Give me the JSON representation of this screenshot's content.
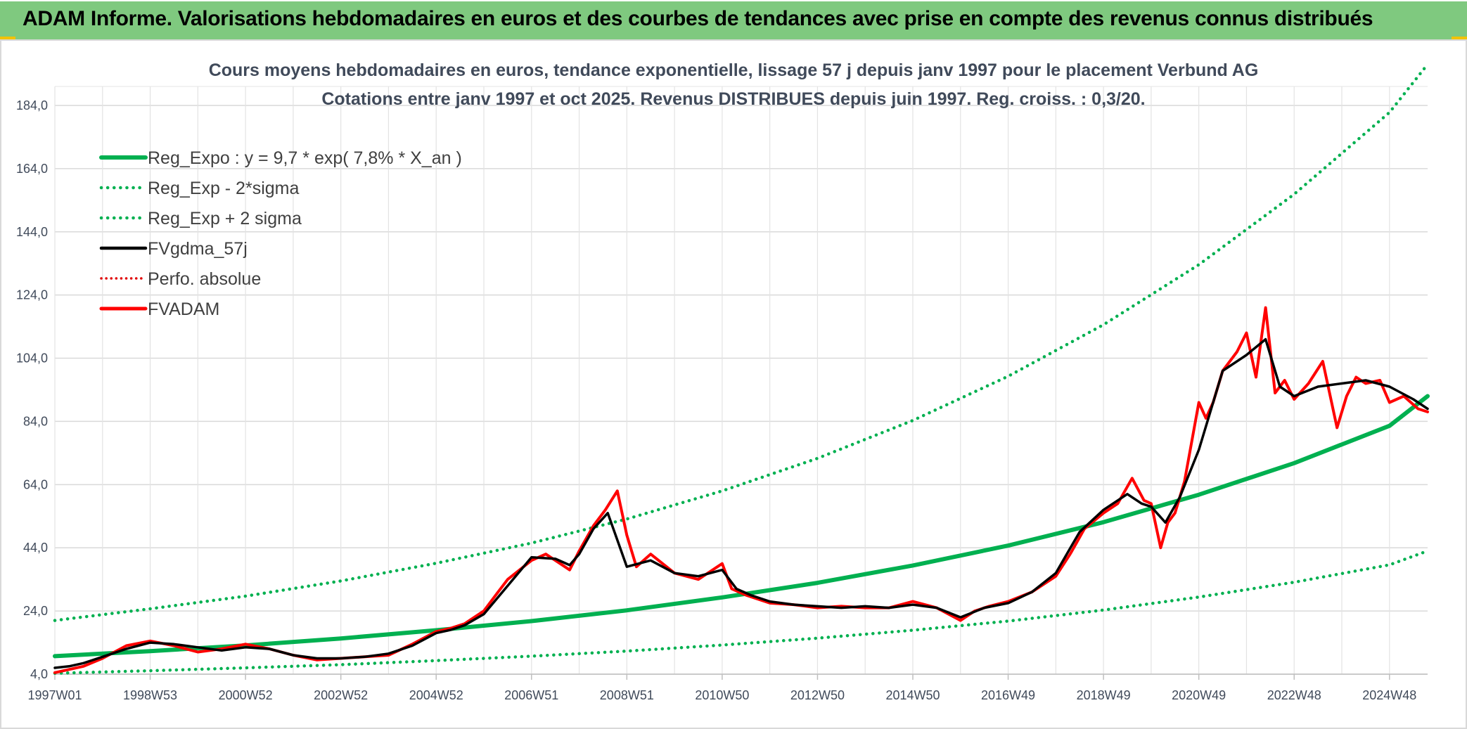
{
  "header": {
    "title": "ADAM Informe. Valorisations hebdomadaires en euros et des courbes de tendances avec prise en compte des revenus connus distribués"
  },
  "colors": {
    "header_bg": "#7fc97f",
    "reg_green": "#00b050",
    "fvgdma_black": "#000000",
    "fvadam_red": "#ff0000",
    "perfo_red": "#e00000"
  },
  "chart_data": {
    "type": "line",
    "title": "Cours moyens hebdomadaires en euros, tendance exponentielle, lissage 57 j depuis janv 1997 pour le placement Verbund AG",
    "subtitle": "Cotations entre janv 1997 et oct 2025. Revenus DISTRIBUES depuis juin 1997. Reg. croiss. : 0,3/20.",
    "x_ticks": [
      "1997W01",
      "1998W53",
      "2000W52",
      "2002W52",
      "2004W52",
      "2006W51",
      "2008W51",
      "2010W50",
      "2012W50",
      "2014W50",
      "2016W49",
      "2018W49",
      "2020W49",
      "2022W48",
      "2024W48"
    ],
    "x_tick_years": [
      1997.0,
      1999.0,
      2001.0,
      2003.0,
      2005.0,
      2007.0,
      2009.0,
      2011.0,
      2013.0,
      2015.0,
      2017.0,
      2019.0,
      2021.0,
      2023.0,
      2025.0
    ],
    "x_range": [
      1997.0,
      2025.8
    ],
    "y_ticks": [
      "4,0",
      "24,0",
      "44,0",
      "64,0",
      "84,0",
      "104,0",
      "124,0",
      "144,0",
      "164,0",
      "184,0"
    ],
    "ylim": [
      4,
      190
    ],
    "grid": true,
    "legend_position": "top-left",
    "legend": [
      {
        "label": "Reg_Expo : y = 9,7 * exp( 7,8% *  X_an )",
        "color": "#00b050",
        "style": "solid-thick"
      },
      {
        "label": "Reg_Exp - 2*sigma",
        "color": "#00b050",
        "style": "dotted"
      },
      {
        "label": "Reg_Exp + 2 sigma",
        "color": "#00b050",
        "style": "dotted"
      },
      {
        "label": "FVgdma_57j",
        "color": "#000000",
        "style": "solid"
      },
      {
        "label": "Perfo. absolue",
        "color": "#e00000",
        "style": "dotted"
      },
      {
        "label": "FVADAM",
        "color": "#ff0000",
        "style": "solid-thick"
      }
    ],
    "series": [
      {
        "name": "Reg_Expo : y = 9,7 * exp( 7,8% *  X_an )",
        "x": [
          1997,
          1999,
          2001,
          2003,
          2005,
          2007,
          2009,
          2011,
          2013,
          2015,
          2017,
          2019,
          2021,
          2023,
          2025,
          2025.8
        ],
        "values": [
          9.7,
          11.3,
          13.1,
          15.3,
          17.9,
          20.8,
          24.2,
          28.3,
          32.9,
          38.4,
          44.7,
          52.1,
          60.8,
          70.8,
          82.6,
          92.0
        ]
      },
      {
        "name": "Reg_Exp - 2*sigma",
        "x": [
          1997,
          1999,
          2001,
          2003,
          2005,
          2007,
          2009,
          2011,
          2013,
          2015,
          2017,
          2019,
          2021,
          2023,
          2025,
          2025.8
        ],
        "values": [
          4.3,
          5.1,
          6.0,
          7.0,
          8.3,
          9.7,
          11.3,
          13.2,
          15.4,
          17.9,
          20.8,
          24.3,
          28.4,
          33.1,
          38.6,
          43.0
        ]
      },
      {
        "name": "Reg_Exp + 2 sigma",
        "x": [
          1997,
          1999,
          2001,
          2003,
          2005,
          2007,
          2009,
          2011,
          2013,
          2015,
          2017,
          2019,
          2021,
          2023,
          2025,
          2025.8
        ],
        "values": [
          21.0,
          24.7,
          28.7,
          33.5,
          39.1,
          45.5,
          53.1,
          62.0,
          72.3,
          84.3,
          98.3,
          114.6,
          133.6,
          155.9,
          181.8,
          197.0
        ]
      },
      {
        "name": "FVgdma_57j",
        "x": [
          1997.0,
          1997.3,
          1997.6,
          1998.0,
          1998.5,
          1999.0,
          1999.5,
          2000.0,
          2000.5,
          2001.0,
          2001.5,
          2002.0,
          2002.5,
          2003.0,
          2003.5,
          2004.0,
          2004.5,
          2005.0,
          2005.3,
          2005.6,
          2006.0,
          2006.5,
          2007.0,
          2007.5,
          2007.8,
          2008.0,
          2008.3,
          2008.6,
          2009.0,
          2009.5,
          2010.0,
          2010.5,
          2011.0,
          2011.3,
          2011.6,
          2012.0,
          2012.5,
          2013.0,
          2013.5,
          2014.0,
          2014.5,
          2015.0,
          2015.5,
          2016.0,
          2016.5,
          2017.0,
          2017.5,
          2018.0,
          2018.5,
          2019.0,
          2019.5,
          2019.8,
          2020.0,
          2020.3,
          2020.6,
          2021.0,
          2021.5,
          2022.0,
          2022.4,
          2022.7,
          2023.0,
          2023.5,
          2024.0,
          2024.5,
          2025.0,
          2025.5,
          2025.8
        ],
        "values": [
          6.0,
          6.5,
          7.5,
          9.5,
          12.0,
          14.0,
          13.5,
          12.5,
          11.5,
          12.5,
          12.0,
          10.0,
          9.0,
          9.0,
          9.5,
          10.5,
          13.0,
          17.0,
          18.0,
          19.5,
          23.0,
          32.0,
          41.0,
          40.5,
          38.5,
          42.0,
          50.0,
          55.0,
          38.0,
          40.0,
          36.0,
          35.0,
          37.0,
          31.0,
          29.0,
          27.0,
          26.0,
          25.5,
          25.0,
          25.5,
          25.0,
          26.0,
          25.0,
          22.0,
          25.0,
          26.5,
          30.0,
          36.0,
          49.0,
          56.0,
          61.0,
          58.0,
          57.0,
          52.0,
          60.0,
          75.0,
          100.0,
          105.0,
          110.0,
          95.0,
          92.0,
          95.0,
          96.0,
          97.0,
          95.0,
          91.0,
          88.0
        ]
      },
      {
        "name": "FVADAM",
        "x": [
          1997.0,
          1997.3,
          1997.6,
          1998.0,
          1998.5,
          1999.0,
          1999.5,
          2000.0,
          2000.5,
          2001.0,
          2001.5,
          2002.0,
          2002.5,
          2003.0,
          2003.5,
          2004.0,
          2004.5,
          2005.0,
          2005.3,
          2005.6,
          2006.0,
          2006.3,
          2006.5,
          2007.0,
          2007.3,
          2007.5,
          2007.8,
          2008.0,
          2008.3,
          2008.55,
          2008.8,
          2009.0,
          2009.2,
          2009.5,
          2010.0,
          2010.5,
          2011.0,
          2011.2,
          2011.5,
          2012.0,
          2012.5,
          2013.0,
          2013.5,
          2014.0,
          2014.5,
          2015.0,
          2015.5,
          2016.0,
          2016.3,
          2016.6,
          2017.0,
          2017.5,
          2018.0,
          2018.3,
          2018.6,
          2019.0,
          2019.3,
          2019.6,
          2019.85,
          2020.0,
          2020.2,
          2020.35,
          2020.5,
          2020.7,
          2021.0,
          2021.15,
          2021.3,
          2021.5,
          2021.8,
          2022.0,
          2022.2,
          2022.4,
          2022.6,
          2022.8,
          2023.0,
          2023.3,
          2023.6,
          2023.9,
          2024.1,
          2024.3,
          2024.5,
          2024.8,
          2025.0,
          2025.3,
          2025.6,
          2025.8
        ],
        "values": [
          4.5,
          5.5,
          6.5,
          9.0,
          13.0,
          14.5,
          13.0,
          11.0,
          12.0,
          13.5,
          12.0,
          10.0,
          8.5,
          9.0,
          9.5,
          10.0,
          13.5,
          17.5,
          18.5,
          20.0,
          24.0,
          30.0,
          34.0,
          40.0,
          42.0,
          40.0,
          37.0,
          43.0,
          51.0,
          56.0,
          62.0,
          48.0,
          38.0,
          42.0,
          36.0,
          34.0,
          39.0,
          31.0,
          29.0,
          26.5,
          26.0,
          25.0,
          25.5,
          25.0,
          25.0,
          27.0,
          25.0,
          21.0,
          24.0,
          25.5,
          27.0,
          30.0,
          35.0,
          42.0,
          50.0,
          55.0,
          58.0,
          66.0,
          59.0,
          58.0,
          44.0,
          52.0,
          55.0,
          65.0,
          90.0,
          85.0,
          90.0,
          100.0,
          106.0,
          112.0,
          98.0,
          120.0,
          93.0,
          97.0,
          91.0,
          96.0,
          103.0,
          82.0,
          92.0,
          98.0,
          96.0,
          97.0,
          90.0,
          92.0,
          88.0,
          87.0
        ]
      }
    ]
  }
}
